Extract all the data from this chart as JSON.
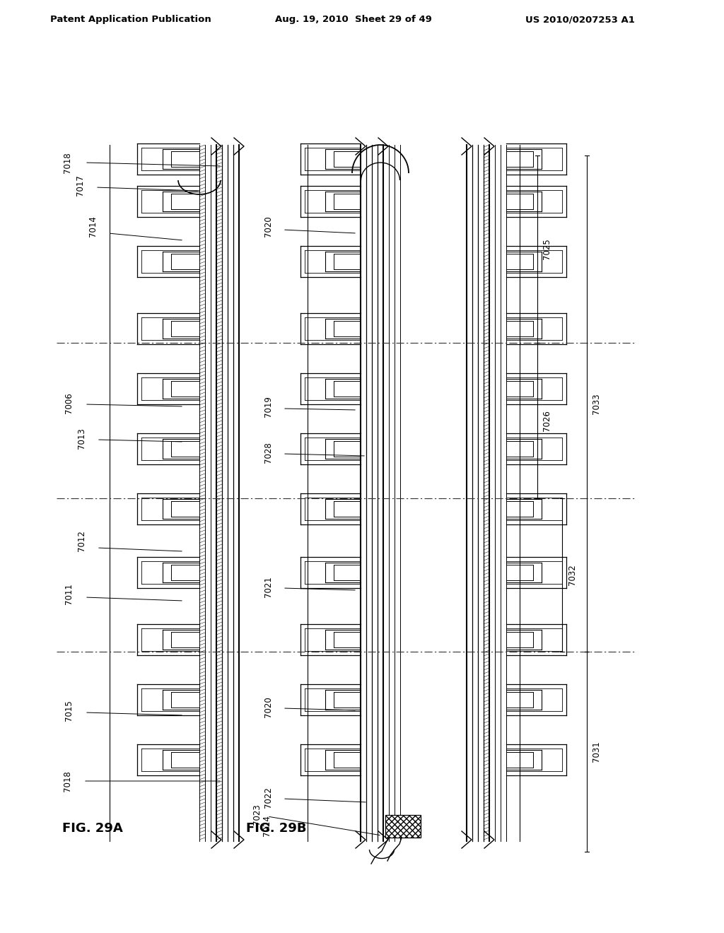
{
  "bg_color": "#ffffff",
  "line_color": "#000000",
  "header_left": "Patent Application Publication",
  "header_mid": "Aug. 19, 2010  Sheet 29 of 49",
  "header_right": "US 2010/0207253 A1",
  "fig_a_label": "FIG. 29A",
  "fig_b_label": "FIG. 29B",
  "label_fs": 8.5,
  "header_fs": 9.5
}
